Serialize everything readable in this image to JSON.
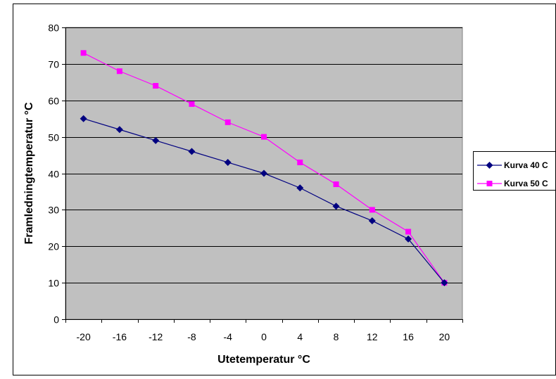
{
  "chart_data": {
    "type": "line",
    "title": "",
    "xlabel": "Utetemperatur °C",
    "ylabel": "Framledningtemperatur °C",
    "categories": [
      "-20",
      "-16",
      "-12",
      "-8",
      "-4",
      "0",
      "4",
      "8",
      "12",
      "16",
      "20"
    ],
    "ylim": [
      0,
      80
    ],
    "yticks": [
      0,
      10,
      20,
      30,
      40,
      50,
      60,
      70,
      80
    ],
    "grid": "horizontal",
    "legend": "right",
    "plot_background": "#C0C0C0",
    "series": [
      {
        "name": "Kurva 40 C",
        "color": "#000080",
        "marker": "diamond",
        "values": [
          55,
          52,
          49,
          46,
          43,
          40,
          36,
          31,
          27,
          22,
          10
        ]
      },
      {
        "name": "Kurva 50 C",
        "color": "#FF00FF",
        "marker": "square",
        "values": [
          73,
          68,
          64,
          59,
          54,
          50,
          43,
          37,
          30,
          24,
          10
        ]
      }
    ]
  }
}
